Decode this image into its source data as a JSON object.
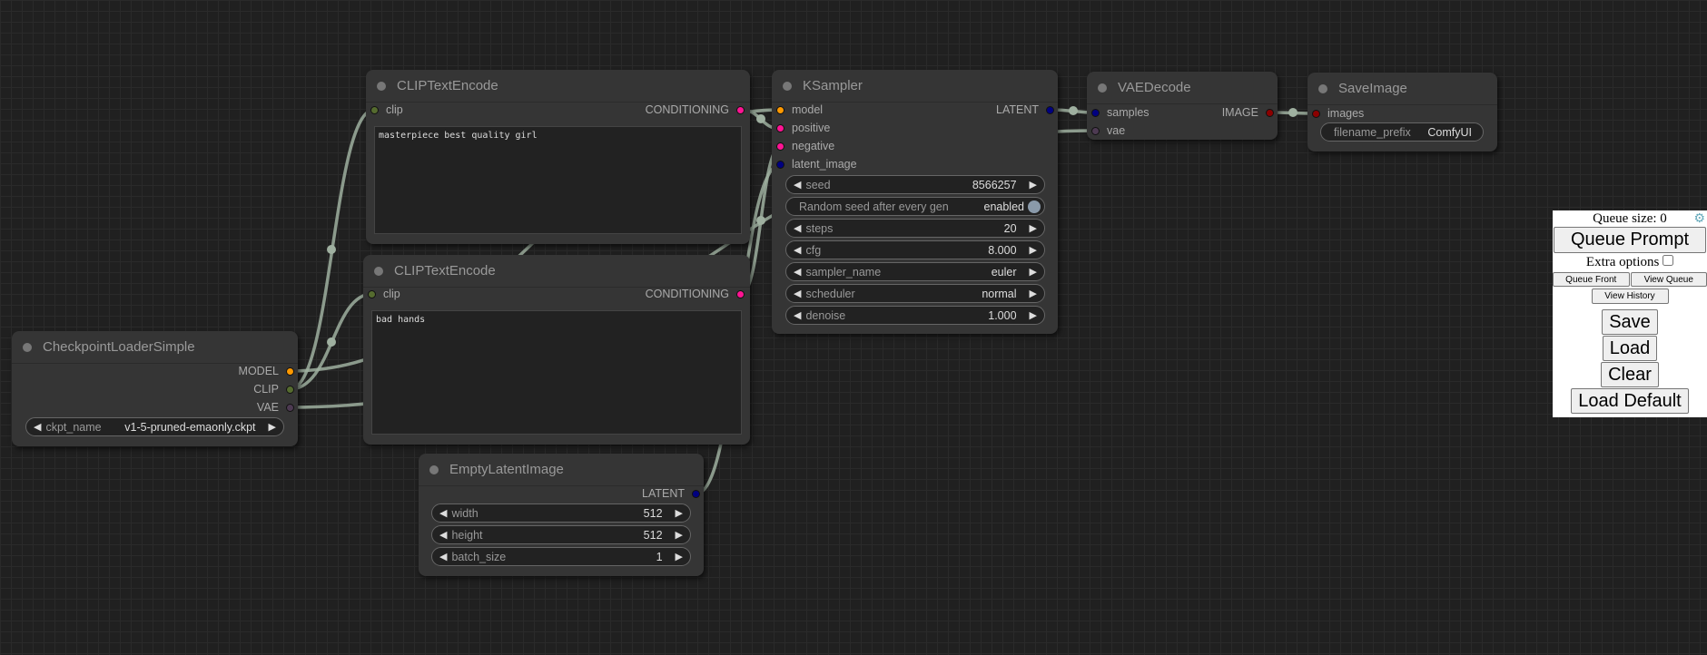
{
  "nodes": {
    "checkpoint": {
      "title": "CheckpointLoaderSimple",
      "outputs": [
        "MODEL",
        "CLIP",
        "VAE"
      ],
      "ckpt_label": "ckpt_name",
      "ckpt_value": "v1-5-pruned-emaonly.ckpt"
    },
    "clip_pos": {
      "title": "CLIPTextEncode",
      "input": "clip",
      "output": "CONDITIONING",
      "text": "masterpiece best quality girl"
    },
    "clip_neg": {
      "title": "CLIPTextEncode",
      "input": "clip",
      "output": "CONDITIONING",
      "text": "bad hands"
    },
    "latent": {
      "title": "EmptyLatentImage",
      "output": "LATENT",
      "widgets": [
        {
          "label": "width",
          "value": "512"
        },
        {
          "label": "height",
          "value": "512"
        },
        {
          "label": "batch_size",
          "value": "1"
        }
      ]
    },
    "ksampler": {
      "title": "KSampler",
      "inputs": [
        "model",
        "positive",
        "negative",
        "latent_image"
      ],
      "output": "LATENT",
      "widgets": [
        {
          "label": "seed",
          "value": "8566257"
        },
        {
          "label": "Random seed after every gen",
          "value": "enabled"
        },
        {
          "label": "steps",
          "value": "20"
        },
        {
          "label": "cfg",
          "value": "8.000"
        },
        {
          "label": "sampler_name",
          "value": "euler"
        },
        {
          "label": "scheduler",
          "value": "normal"
        },
        {
          "label": "denoise",
          "value": "1.000"
        }
      ]
    },
    "vaedecode": {
      "title": "VAEDecode",
      "inputs": [
        "samples",
        "vae"
      ],
      "output": "IMAGE"
    },
    "saveimage": {
      "title": "SaveImage",
      "input": "images",
      "prefix_label": "filename_prefix",
      "prefix_value": "ComfyUI"
    }
  },
  "slot_colors": {
    "MODEL": "#ff9900",
    "CLIP": "#556b2f",
    "VAE": "#4d3a52",
    "CONDITIONING": "#ff1493",
    "LATENT": "#000080",
    "IMAGE": "#8b0000"
  },
  "panel": {
    "queue_size": "Queue size: 0",
    "queue_prompt": "Queue Prompt",
    "extra_options": "Extra options",
    "queue_front": "Queue Front",
    "view_queue": "View Queue",
    "view_history": "View History",
    "save": "Save",
    "load": "Load",
    "clear": "Clear",
    "load_default": "Load Default"
  }
}
